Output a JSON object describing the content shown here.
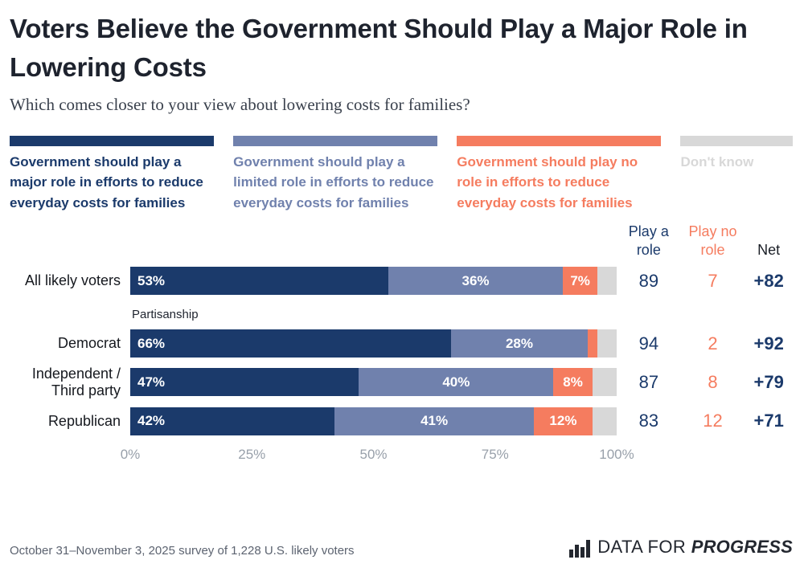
{
  "title": "Voters Believe the Government Should Play a Major Role in Lowering Costs",
  "subtitle": "Which comes closer to your view about lowering costs for families?",
  "colors": {
    "major": "#1b3a6b",
    "limited": "#7081ad",
    "no_role": "#f57c5f",
    "dont_know": "#d8d8d8",
    "net_number": "#1b3a6b",
    "net_header": "#1a1e26"
  },
  "legend": [
    {
      "key": "major",
      "label": "Government should play a major role in efforts to reduce everyday costs for families"
    },
    {
      "key": "limited",
      "label": "Government should play a limited role in efforts to reduce everyday costs for families"
    },
    {
      "key": "no_role",
      "label": "Government should play no role in efforts to reduce everyday costs for families"
    },
    {
      "key": "dont_know",
      "label": "Don't know"
    }
  ],
  "stats_headers": [
    {
      "label": "Play a role"
    },
    {
      "label": "Play no role"
    },
    {
      "label": "Net"
    }
  ],
  "section_label": "Partisanship",
  "chart_data": {
    "type": "bar",
    "stacked": true,
    "orientation": "horizontal",
    "xlim": [
      0,
      100
    ],
    "x_ticks": [
      "0%",
      "25%",
      "50%",
      "75%",
      "100%"
    ],
    "segment_keys": [
      "major",
      "limited",
      "no_role",
      "dont_know"
    ],
    "series_names": [
      "Government should play a major role",
      "Government should play a limited role",
      "Government should play no role",
      "Don't know"
    ],
    "rows": [
      {
        "label": "All likely voters",
        "values": [
          53,
          36,
          7,
          4
        ],
        "segment_labels": [
          "53%",
          "36%",
          "7%",
          ""
        ],
        "play_a_role": 89,
        "play_no_role": 7,
        "net": "+82"
      },
      {
        "label": "Democrat",
        "values": [
          66,
          28,
          2,
          4
        ],
        "segment_labels": [
          "66%",
          "28%",
          "",
          ""
        ],
        "play_a_role": 94,
        "play_no_role": 2,
        "net": "+92"
      },
      {
        "label": "Independent / Third party",
        "values": [
          47,
          40,
          8,
          5
        ],
        "segment_labels": [
          "47%",
          "40%",
          "8%",
          ""
        ],
        "play_a_role": 87,
        "play_no_role": 8,
        "net": "+79"
      },
      {
        "label": "Republican",
        "values": [
          42,
          41,
          12,
          5
        ],
        "segment_labels": [
          "42%",
          "41%",
          "12%",
          ""
        ],
        "play_a_role": 83,
        "play_no_role": 12,
        "net": "+71"
      }
    ]
  },
  "footer": {
    "source": "October 31–November 3, 2025 survey of 1,228 U.S. likely voters",
    "logo_regular": "DATA FOR ",
    "logo_bold": "PROGRESS"
  }
}
